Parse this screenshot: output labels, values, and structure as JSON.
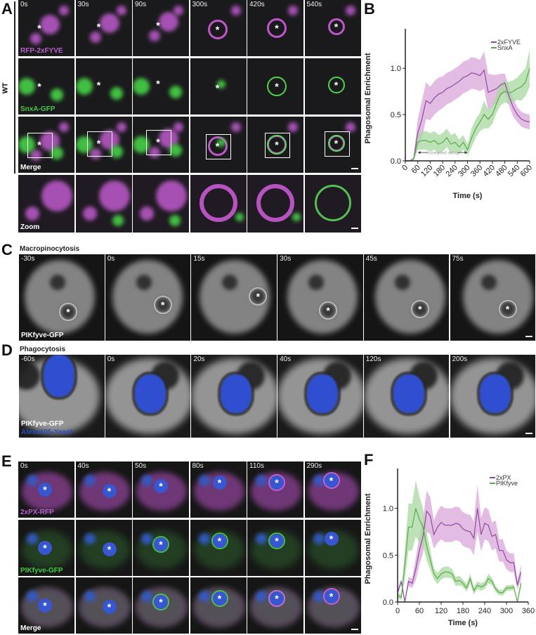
{
  "marker": "*",
  "panelA": {
    "label": "A",
    "genotype": "WT",
    "times": [
      "0s",
      "30s",
      "90s",
      "300s",
      "420s",
      "540s"
    ],
    "rows": [
      {
        "channel": "RFP-2xFYVE",
        "color": "#b463c8",
        "kind": "magenta"
      },
      {
        "channel": "SnxA-GFP",
        "color": "#45c845",
        "kind": "green"
      },
      {
        "channel": "Merge",
        "color": "#ffffff",
        "kind": "merge"
      },
      {
        "channel": "Zoom",
        "color": "#ffffff",
        "kind": "zoom"
      }
    ]
  },
  "panelB": {
    "label": "B",
    "chart_data": {
      "type": "line",
      "ylabel": "Phagosomal  Enrichment",
      "xlabel": "Time (s)",
      "xlim": [
        0,
        600
      ],
      "ylim": [
        0,
        1.35
      ],
      "xticks": [
        0,
        60,
        120,
        180,
        240,
        300,
        360,
        420,
        480,
        540,
        600
      ],
      "yticks": [
        0.0,
        0.5,
        1.0
      ],
      "legend": "top-right",
      "annotation": "Increased delay",
      "annotation_range": [
        60,
        300
      ],
      "x": [
        0,
        20,
        40,
        60,
        80,
        100,
        120,
        140,
        160,
        180,
        200,
        220,
        240,
        260,
        280,
        300,
        320,
        340,
        360,
        380,
        400,
        420,
        440,
        460,
        480,
        500,
        520,
        540,
        560,
        580,
        600
      ],
      "series": [
        {
          "name": "2xFYVE",
          "color": "#8e4a9e",
          "band_color": "#d9a6da",
          "values": [
            0,
            0,
            0.02,
            0.3,
            0.45,
            0.65,
            0.62,
            0.68,
            0.72,
            0.74,
            0.78,
            0.8,
            0.83,
            0.86,
            0.9,
            0.92,
            0.95,
            0.94,
            0.92,
            0.98,
            0.74,
            0.76,
            0.78,
            0.82,
            0.84,
            0.7,
            0.58,
            0.5,
            0.45,
            0.43,
            0.42
          ],
          "sd": [
            0,
            0,
            0.02,
            0.15,
            0.2,
            0.2,
            0.18,
            0.18,
            0.18,
            0.17,
            0.17,
            0.17,
            0.17,
            0.17,
            0.17,
            0.17,
            0.17,
            0.17,
            0.17,
            0.2,
            0.2,
            0.17,
            0.15,
            0.12,
            0.1,
            0.1,
            0.1,
            0.08,
            0.08,
            0.08,
            0.08
          ]
        },
        {
          "name": "SnxA",
          "color": "#5aaa46",
          "band_color": "#a8d8a0",
          "values": [
            0,
            0,
            0.02,
            0.2,
            0.22,
            0.22,
            0.2,
            0.22,
            0.18,
            0.2,
            0.25,
            0.18,
            0.2,
            0.15,
            0.2,
            0.12,
            0.25,
            0.35,
            0.42,
            0.5,
            0.45,
            0.5,
            0.62,
            0.72,
            0.75,
            0.73,
            0.75,
            0.78,
            0.8,
            0.85,
            1.0
          ],
          "sd": [
            0,
            0,
            0.02,
            0.08,
            0.1,
            0.1,
            0.1,
            0.1,
            0.1,
            0.1,
            0.1,
            0.1,
            0.1,
            0.08,
            0.08,
            0.06,
            0.1,
            0.1,
            0.1,
            0.15,
            0.1,
            0.1,
            0.1,
            0.12,
            0.12,
            0.12,
            0.12,
            0.12,
            0.15,
            0.15,
            0.2
          ]
        }
      ]
    }
  },
  "panelC": {
    "label": "C",
    "title": "Macropinocytosis",
    "times": [
      "-30s",
      "0s",
      "15s",
      "30s",
      "45s",
      "75s"
    ],
    "channel": "PIKfyve-GFP"
  },
  "panelD": {
    "label": "D",
    "title": "Phagocytosis",
    "times": [
      "-60s",
      "0s",
      "20s",
      "40s",
      "120s",
      "200s"
    ],
    "channels": [
      {
        "name": "PIKfyve-GFP",
        "color": "#ffffff"
      },
      {
        "name": "Alexa405-Yeast",
        "color": "#2b4fbf"
      }
    ]
  },
  "panelE": {
    "label": "E",
    "times": [
      "0s",
      "40s",
      "50s",
      "80s",
      "110s",
      "290s"
    ],
    "rows": [
      {
        "channel": "2xPX-RFP",
        "color": "#b463c8",
        "kind": "magenta"
      },
      {
        "channel": "PIKfyve-GFP",
        "color": "#45c845",
        "kind": "green"
      },
      {
        "channel": "Merge",
        "color": "#ffffff",
        "kind": "merge"
      }
    ]
  },
  "panelF": {
    "label": "F",
    "chart_data": {
      "type": "line",
      "ylabel": "Phagosomal  Enrichment",
      "xlabel": "Time (s)",
      "xlim": [
        0,
        360
      ],
      "ylim": [
        0,
        1.35
      ],
      "xticks": [
        0,
        60,
        120,
        180,
        240,
        300,
        360
      ],
      "yticks": [
        0.0,
        0.5,
        1.0
      ],
      "legend": "top-right",
      "x": [
        0,
        10,
        20,
        30,
        40,
        50,
        60,
        70,
        80,
        90,
        100,
        110,
        120,
        130,
        140,
        150,
        160,
        170,
        180,
        190,
        200,
        210,
        220,
        230,
        240,
        250,
        260,
        270,
        280,
        290,
        300,
        310,
        320,
        330,
        340
      ],
      "series": [
        {
          "name": "2xPX",
          "color": "#8e4a9e",
          "band_color": "#d9a6da",
          "values": [
            0.1,
            0.22,
            0,
            0.22,
            0.2,
            0.35,
            0.55,
            0.7,
            0.97,
            0.92,
            0.72,
            0.8,
            0.85,
            0.82,
            0.82,
            0.82,
            0.84,
            0.83,
            0.78,
            0.76,
            0.75,
            0.68,
            1.0,
            0.72,
            0.84,
            0.82,
            0.7,
            0.72,
            0.55,
            0.55,
            0.45,
            0.42,
            0.42,
            0.18,
            0.32
          ],
          "sd": [
            0.03,
            0.03,
            0.02,
            0.05,
            0.05,
            0.12,
            0.15,
            0.18,
            0.22,
            0.2,
            0.15,
            0.17,
            0.18,
            0.18,
            0.18,
            0.18,
            0.18,
            0.18,
            0.18,
            0.18,
            0.18,
            0.18,
            0.25,
            0.18,
            0.17,
            0.17,
            0.15,
            0.15,
            0.12,
            0.12,
            0.1,
            0.1,
            0.1,
            0.05,
            0.08
          ]
        },
        {
          "name": "PIKfyve",
          "color": "#5aaa46",
          "band_color": "#a8d8a0",
          "values": [
            0.07,
            0.05,
            0.4,
            0.8,
            0.8,
            1.0,
            0.88,
            0.8,
            0.6,
            0.45,
            0.3,
            0.25,
            0.3,
            0.32,
            0.32,
            0.3,
            0.22,
            0.23,
            0.2,
            0.15,
            0.25,
            0.12,
            0.18,
            0.16,
            0.18,
            0.25,
            0.22,
            0.14,
            0.1,
            0.1,
            0.15,
            0.15,
            0.16,
            0,
            0.2
          ],
          "sd": [
            0.03,
            0.03,
            0.15,
            0.25,
            0.25,
            0.3,
            0.25,
            0.2,
            0.15,
            0.1,
            0.06,
            0.06,
            0.06,
            0.06,
            0.06,
            0.05,
            0.05,
            0.05,
            0.04,
            0.04,
            0.05,
            0.04,
            0.04,
            0.04,
            0.04,
            0.05,
            0.04,
            0.03,
            0.03,
            0.03,
            0.03,
            0.03,
            0.03,
            0.02,
            0.04
          ]
        }
      ]
    }
  }
}
